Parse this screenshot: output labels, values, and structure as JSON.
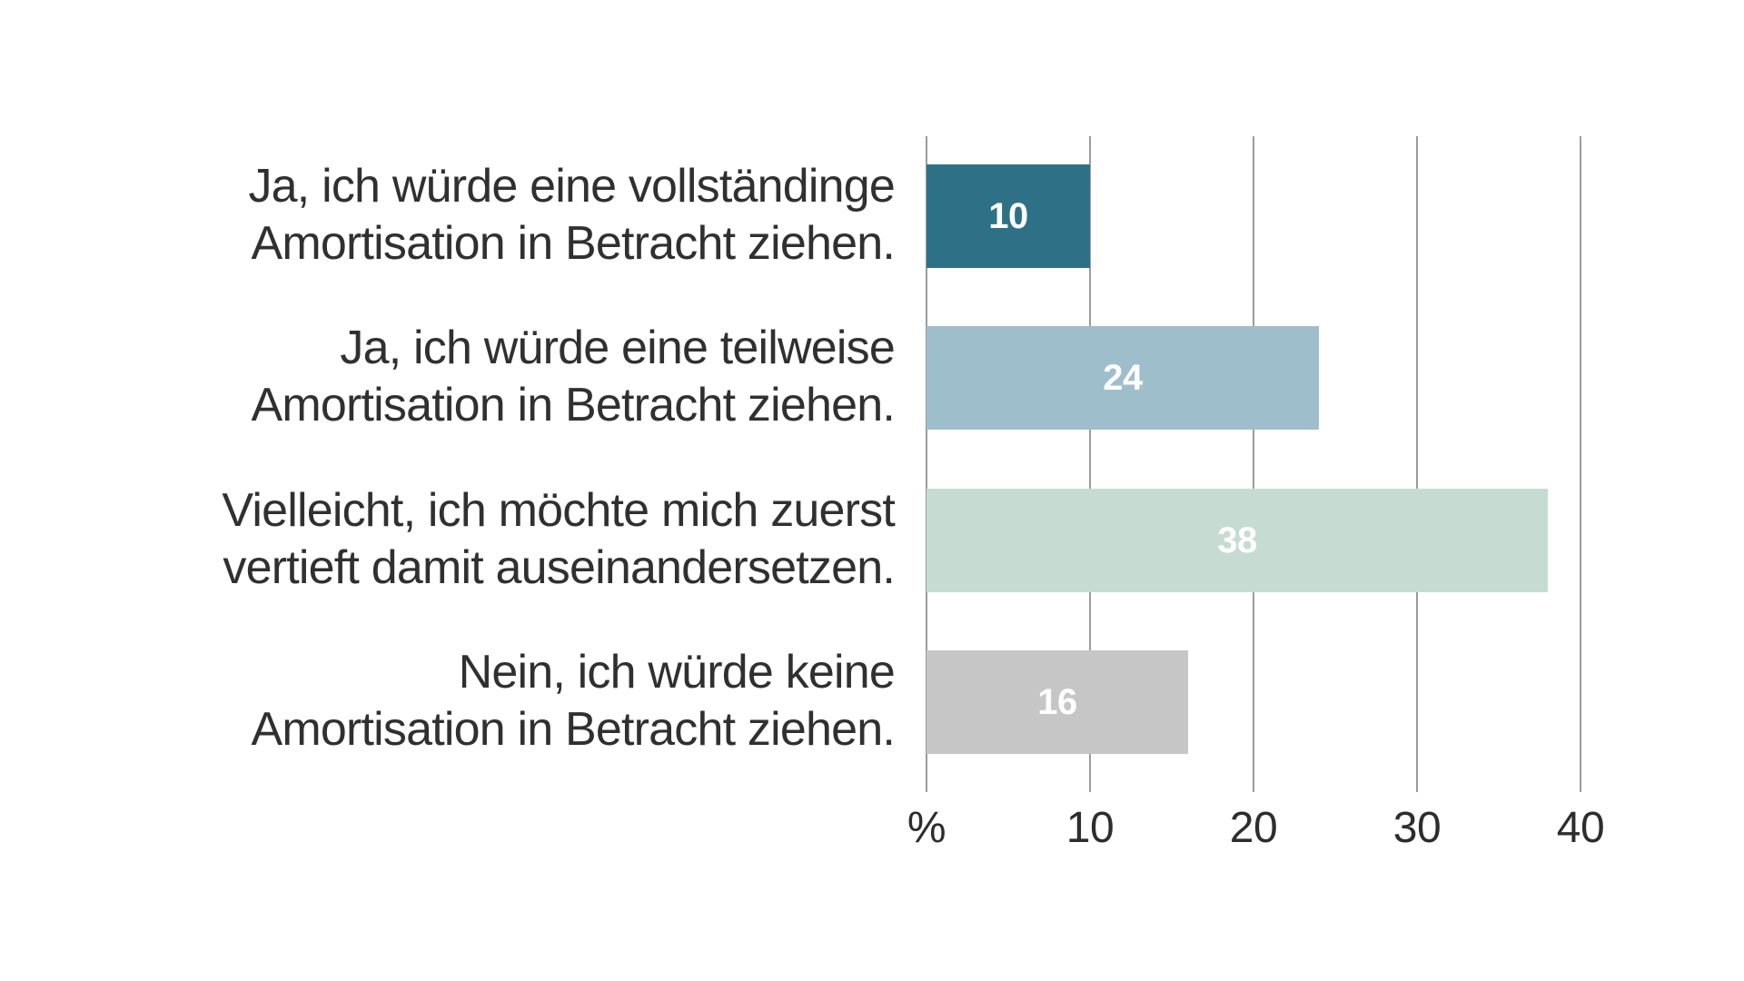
{
  "chart_data": {
    "type": "bar",
    "orientation": "horizontal",
    "title": "",
    "xlabel": "%",
    "ylabel": "",
    "xlim": [
      0,
      45
    ],
    "grid": "vertical",
    "legend": "none",
    "categories": [
      [
        "Ja, ich würde eine vollständinge",
        "Amortisation in Betracht ziehen."
      ],
      [
        "Ja, ich würde eine teilweise",
        "Amortisation in Betracht ziehen."
      ],
      [
        "Vielleicht, ich möchte mich zuerst",
        "vertieft damit auseinandersetzen."
      ],
      [
        "Nein, ich würde keine",
        "Amortisation in Betracht ziehen."
      ]
    ],
    "values": [
      10,
      24,
      38,
      16
    ],
    "value_labels": [
      "10",
      "24",
      "38",
      "16"
    ],
    "bar_colors": [
      "#2e7187",
      "#9fbecb",
      "#c6dcd3",
      "#c6c6c6"
    ],
    "value_label_color": "#ffffff",
    "x_ticks": [
      {
        "label": "%",
        "value": 0
      },
      {
        "label": "10",
        "value": 10
      },
      {
        "label": "20",
        "value": 20
      },
      {
        "label": "30",
        "value": 30
      },
      {
        "label": "40",
        "value": 40
      }
    ],
    "gridline_values": [
      0,
      10,
      20,
      30,
      40
    ],
    "gridline_color": "#9c9c9c",
    "background_color": "#ffffff",
    "text_color": "#303030"
  }
}
